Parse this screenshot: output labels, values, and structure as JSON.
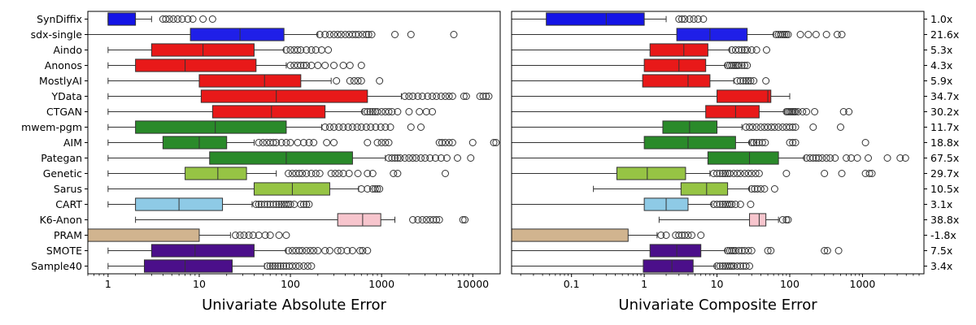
{
  "chart_data": [
    {
      "type": "boxplot",
      "orientation": "horizontal",
      "xlabel": "Univariate Absolute Error",
      "xscale": "log",
      "xlim": [
        0.6,
        20000
      ],
      "xticks": [
        1,
        10,
        100,
        1000,
        10000
      ],
      "xtick_labels": [
        "1",
        "10",
        "100",
        "1000",
        "10000"
      ],
      "categories": [
        "SynDiffix",
        "sdx-single",
        "Aindo",
        "Anonos",
        "MostlyAI",
        "YData",
        "CTGAN",
        "mwem-pgm",
        "AIM",
        "Pategan",
        "Genetic",
        "Sarus",
        "CART",
        "K6-Anon",
        "PRAM",
        "SMOTE",
        "Sample40"
      ],
      "boxes": [
        {
          "q1": 1.0,
          "median": 1.0,
          "q3": 2.0,
          "whislo": 1.0,
          "whishi": 3.0,
          "fliers": [
            4,
            4.3,
            4.7,
            5.2,
            5.8,
            6.5,
            7.5,
            8.5,
            11,
            14
          ]
        },
        {
          "q1": 8,
          "median": 28,
          "q3": 85,
          "whislo": 0.6,
          "whishi": 200,
          "fliers": [
            210,
            240,
            270,
            300,
            330,
            360,
            400,
            440,
            480,
            520,
            560,
            620,
            680,
            720,
            780,
            1400,
            2100,
            6200
          ]
        },
        {
          "q1": 3,
          "median": 11,
          "q3": 40,
          "whislo": 1,
          "whishi": 85,
          "fliers": [
            90,
            100,
            110,
            120,
            130,
            150,
            170,
            190,
            220,
            260
          ]
        },
        {
          "q1": 2,
          "median": 7,
          "q3": 42,
          "whislo": 1,
          "whishi": 90,
          "fliers": [
            100,
            110,
            120,
            130,
            140,
            150,
            170,
            200,
            240,
            300,
            380,
            450,
            600
          ]
        },
        {
          "q1": 10,
          "median": 52,
          "q3": 130,
          "whislo": 1,
          "whishi": 280,
          "fliers": [
            320,
            450,
            500,
            550,
            600,
            950
          ]
        },
        {
          "q1": 10.5,
          "median": 70,
          "q3": 700,
          "whislo": 1,
          "whishi": 1650,
          "fliers": [
            1800,
            2000,
            2200,
            2500,
            2800,
            3200,
            3600,
            4000,
            4500,
            5000,
            5500,
            6000,
            8000,
            8500,
            12000,
            13000,
            14000,
            15000
          ]
        },
        {
          "q1": 14,
          "median": 62,
          "q3": 240,
          "whislo": 1,
          "whishi": 620,
          "fliers": [
            650,
            700,
            750,
            800,
            850,
            900,
            1000,
            1100,
            1200,
            1300,
            1500,
            2000,
            2600,
            3100,
            3600
          ]
        },
        {
          "q1": 2,
          "median": 15,
          "q3": 90,
          "whislo": 1,
          "whishi": 220,
          "fliers": [
            240,
            270,
            300,
            340,
            380,
            430,
            480,
            540,
            600,
            680,
            760,
            860,
            980,
            1100,
            1250,
            2100,
            2700
          ]
        },
        {
          "q1": 4,
          "median": 10,
          "q3": 20,
          "whislo": 1,
          "whishi": 40,
          "fliers": [
            45,
            50,
            55,
            60,
            65,
            70,
            80,
            90,
            100,
            120,
            140,
            160,
            180,
            250,
            300,
            700,
            900,
            1000,
            1100,
            1200,
            4300,
            4600,
            5000,
            5500,
            6000,
            10000,
            17000,
            18000
          ]
        },
        {
          "q1": 13,
          "median": 90,
          "q3": 480,
          "whislo": 1,
          "whishi": 1100,
          "fliers": [
            1200,
            1300,
            1400,
            1500,
            1600,
            1800,
            2000,
            2200,
            2400,
            2700,
            3000,
            3400,
            3900,
            4500,
            5200,
            6800,
            9500
          ]
        },
        {
          "q1": 7,
          "median": 16,
          "q3": 33,
          "whislo": 1,
          "whishi": 70,
          "fliers": [
            95,
            105,
            115,
            125,
            135,
            150,
            170,
            190,
            210,
            280,
            310,
            340,
            380,
            440,
            550,
            700,
            800,
            1350,
            1500,
            5000
          ]
        },
        {
          "q1": 40,
          "median": 105,
          "q3": 270,
          "whislo": 1,
          "whishi": 560,
          "fliers": [
            600,
            700,
            800,
            850,
            900,
            950
          ]
        },
        {
          "q1": 2,
          "median": 6,
          "q3": 18,
          "whislo": 1,
          "whishi": 38,
          "fliers": [
            42,
            45,
            48,
            52,
            56,
            60,
            65,
            70,
            75,
            80,
            85,
            90,
            95,
            100,
            110,
            130,
            140,
            150,
            160
          ]
        },
        {
          "q1": 330,
          "median": 620,
          "q3": 980,
          "whislo": 2,
          "whishi": 1400,
          "fliers": [
            2200,
            2500,
            2800,
            3100,
            3400,
            3700,
            4000,
            4300,
            7800,
            8200
          ]
        },
        {
          "q1": 0.6,
          "median": 0.6,
          "q3": 10,
          "whislo": 0.6,
          "whishi": 22,
          "fliers": [
            25,
            28,
            31,
            35,
            39,
            45,
            53,
            60,
            75,
            90
          ]
        },
        {
          "q1": 3,
          "median": 9,
          "q3": 40,
          "whislo": 1,
          "whishi": 90,
          "fliers": [
            95,
            105,
            115,
            125,
            135,
            150,
            165,
            180,
            200,
            240,
            270,
            330,
            360,
            420,
            480,
            580,
            620,
            700
          ]
        },
        {
          "q1": 2.5,
          "median": 7,
          "q3": 23,
          "whislo": 1,
          "whishi": 52,
          "fliers": [
            56,
            60,
            64,
            68,
            73,
            78,
            84,
            90,
            97,
            105,
            115,
            125,
            140,
            155,
            170
          ]
        }
      ]
    },
    {
      "type": "boxplot",
      "orientation": "horizontal",
      "xlabel": "Univariate Composite Error",
      "xscale": "log",
      "xlim": [
        0.015,
        7000
      ],
      "xticks": [
        0.1,
        1,
        10,
        100,
        1000
      ],
      "xtick_labels": [
        "0.1",
        "1",
        "10",
        "100",
        "1000"
      ],
      "categories": [
        "SynDiffix",
        "sdx-single",
        "Aindo",
        "Anonos",
        "MostlyAI",
        "YData",
        "CTGAN",
        "mwem-pgm",
        "AIM",
        "Pategan",
        "Genetic",
        "Sarus",
        "CART",
        "K6-Anon",
        "PRAM",
        "SMOTE",
        "Sample40"
      ],
      "right_labels": [
        "1.0x",
        "21.6x",
        "5.3x",
        "4.3x",
        "5.9x",
        "34.7x",
        "30.2x",
        "11.7x",
        "18.8x",
        "67.5x",
        "29.7x",
        "10.5x",
        "3.1x",
        "38.8x",
        "-1.8x",
        "7.5x",
        "3.4x"
      ],
      "boxes": [
        {
          "q1": 0.045,
          "median": 0.3,
          "q3": 1.0,
          "whislo": 0.015,
          "whishi": 2.0,
          "fliers": [
            3.0,
            3.3,
            3.6,
            4.2,
            4.8,
            5.5,
            6.5
          ]
        },
        {
          "q1": 2.8,
          "median": 8,
          "q3": 26,
          "whislo": 0.015,
          "whishi": 60,
          "fliers": [
            65,
            70,
            75,
            80,
            85,
            90,
            95,
            140,
            180,
            230,
            320,
            450,
            520
          ]
        },
        {
          "q1": 1.2,
          "median": 3.5,
          "q3": 7.5,
          "whislo": 0.015,
          "whishi": 15,
          "fliers": [
            16,
            18,
            20,
            22,
            24,
            26,
            30,
            35,
            48
          ]
        },
        {
          "q1": 1.0,
          "median": 3.0,
          "q3": 7.0,
          "whislo": 0.015,
          "whishi": 13,
          "fliers": [
            14,
            15,
            16,
            17,
            18,
            19,
            20,
            22,
            24,
            26
          ]
        },
        {
          "q1": 0.95,
          "median": 4.0,
          "q3": 8.0,
          "whislo": 0.015,
          "whishi": 17,
          "fliers": [
            19,
            21,
            23,
            25,
            27,
            29,
            32,
            47
          ]
        },
        {
          "q1": 10,
          "median": 50,
          "q3": 55,
          "whislo": 0.015,
          "whishi": 100,
          "fliers": []
        },
        {
          "q1": 7,
          "median": 18,
          "q3": 38,
          "whislo": 0.015,
          "whishi": 85,
          "fliers": [
            90,
            95,
            100,
            105,
            110,
            115,
            120,
            130,
            150,
            170,
            220,
            550,
            650
          ]
        },
        {
          "q1": 1.8,
          "median": 4.2,
          "q3": 10,
          "whislo": 0.015,
          "whishi": 22,
          "fliers": [
            25,
            28,
            31,
            35,
            40,
            45,
            50,
            56,
            62,
            70,
            80,
            90,
            100,
            110,
            120,
            210,
            500
          ]
        },
        {
          "q1": 1.0,
          "median": 4.0,
          "q3": 18,
          "whislo": 0.015,
          "whishi": 28,
          "fliers": [
            30,
            32,
            35,
            38,
            42,
            46,
            100,
            110,
            120,
            1100
          ]
        },
        {
          "q1": 7.5,
          "median": 28,
          "q3": 70,
          "whislo": 0.015,
          "whishi": 160,
          "fliers": [
            170,
            190,
            210,
            230,
            250,
            280,
            320,
            360,
            420,
            600,
            700,
            850,
            1200,
            2200,
            3300,
            3900
          ]
        },
        {
          "q1": 0.42,
          "median": 1.1,
          "q3": 3.7,
          "whislo": 0.015,
          "whishi": 8,
          "fliers": [
            9,
            10,
            11,
            12,
            13,
            14,
            15,
            17,
            19,
            21,
            24,
            27,
            30,
            34,
            38,
            90,
            300,
            520,
            1100,
            1250,
            1350
          ]
        },
        {
          "q1": 3.2,
          "median": 7.2,
          "q3": 14,
          "whislo": 0.2,
          "whishi": 28,
          "fliers": [
            30,
            33,
            36,
            40,
            45,
            62
          ]
        },
        {
          "q1": 1.0,
          "median": 2.0,
          "q3": 4.0,
          "whislo": 0.015,
          "whishi": 8.5,
          "fliers": [
            9,
            10,
            11,
            12,
            13,
            14,
            15,
            16,
            18,
            21,
            29
          ]
        },
        {
          "q1": 28,
          "median": 38,
          "q3": 47,
          "whislo": 1.6,
          "whishi": 70,
          "fliers": [
            80,
            90,
            95
          ]
        },
        {
          "q1": 0.015,
          "median": 0.015,
          "q3": 0.6,
          "whislo": 0.015,
          "whishi": 1.5,
          "fliers": [
            1.7,
            2.0,
            2.7,
            3.0,
            3.3,
            3.6,
            4.0,
            4.5,
            6.0
          ]
        },
        {
          "q1": 1.2,
          "median": 2.8,
          "q3": 6.0,
          "whislo": 0.015,
          "whishi": 13,
          "fliers": [
            14,
            15,
            16,
            17,
            18,
            20,
            22,
            24,
            27,
            30,
            50,
            55,
            300,
            330,
            470
          ]
        },
        {
          "q1": 0.97,
          "median": 2.4,
          "q3": 4.7,
          "whislo": 0.015,
          "whishi": 9.5,
          "fliers": [
            10,
            11,
            12,
            13,
            14,
            15,
            16,
            17,
            19,
            21,
            23,
            25,
            28
          ]
        }
      ]
    }
  ],
  "colors": {
    "SynDiffix": "#1515e6",
    "sdx-single": "#1f1fe8",
    "Aindo": "#e81919",
    "Anonos": "#e81919",
    "MostlyAI": "#e81919",
    "YData": "#e81919",
    "CTGAN": "#e81919",
    "mwem-pgm": "#2a8a2a",
    "AIM": "#2a8a2a",
    "Pategan": "#2a8a2a",
    "Genetic": "#96c444",
    "Sarus": "#96c444",
    "CART": "#8ecae6",
    "K6-Anon": "#f7c5cd",
    "PRAM": "#d1b48f",
    "SMOTE": "#4b0f8a",
    "Sample40": "#4b0f8a"
  }
}
